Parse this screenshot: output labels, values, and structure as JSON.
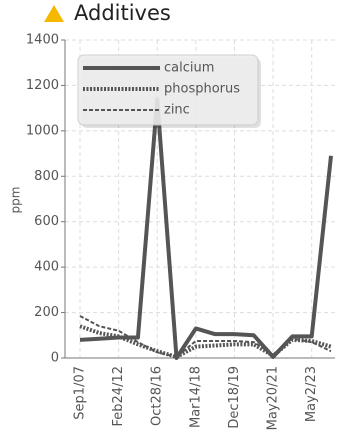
{
  "chart_data": {
    "type": "line",
    "title": "Additives",
    "y_label": "ppm",
    "categories": [
      "Sep1/07",
      null,
      "Feb24/12",
      null,
      "Oct28/16",
      null,
      "Mar14/18",
      null,
      "Dec18/19",
      null,
      "May20/21",
      null,
      "May2/23",
      null
    ],
    "series": [
      {
        "name": "calcium",
        "color": "#555555",
        "style": "solid",
        "values": [
          80,
          85,
          90,
          90,
          1140,
          0,
          130,
          105,
          105,
          100,
          5,
          95,
          95,
          890
        ]
      },
      {
        "name": "phosphorus",
        "color": "#555555",
        "style": "dotted",
        "values": [
          140,
          110,
          95,
          60,
          30,
          5,
          50,
          55,
          60,
          60,
          10,
          80,
          75,
          50
        ]
      },
      {
        "name": "zinc",
        "color": "#555555",
        "style": "dashed",
        "values": [
          185,
          140,
          120,
          70,
          25,
          5,
          75,
          75,
          75,
          70,
          15,
          85,
          70,
          30
        ]
      }
    ],
    "ylim": [
      0,
      1400
    ],
    "yticks": [
      0,
      200,
      400,
      600,
      800,
      1000,
      1200,
      1400
    ],
    "grid": true,
    "legend": "top-left"
  }
}
